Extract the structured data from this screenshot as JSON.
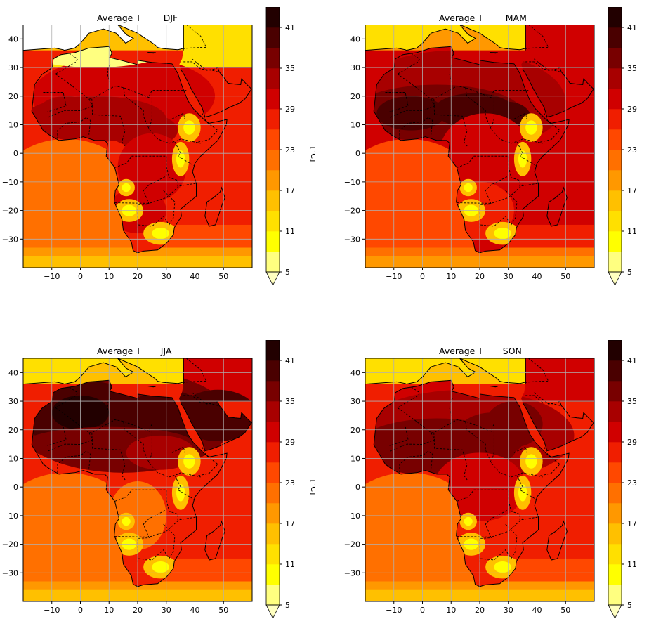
{
  "figure": {
    "panels": [
      {
        "title": "Average T        DJF",
        "season": "DJF"
      },
      {
        "title": "Average T        MAM",
        "season": "MAM"
      },
      {
        "title": "Average T       JJA",
        "season": "JJA"
      },
      {
        "title": "Average T       SON",
        "season": "SON"
      }
    ],
    "x_ticks": [
      "−10",
      "0",
      "10",
      "20",
      "30",
      "40",
      "50"
    ],
    "y_ticks": [
      "40",
      "30",
      "20",
      "10",
      "0",
      "−10",
      "−20",
      "−30"
    ],
    "colorbar": {
      "label": "[°C]",
      "ticks": [
        "5",
        "11",
        "17",
        "23",
        "29",
        "35",
        "41"
      ],
      "levels": [
        5,
        8,
        11,
        14,
        17,
        20,
        23,
        26,
        29,
        32,
        35,
        38,
        41
      ],
      "colors": [
        "#ffffc0",
        "#ffff80",
        "#ffff00",
        "#ffe000",
        "#ffc000",
        "#ff9800",
        "#ff7000",
        "#ff4800",
        "#f01e00",
        "#d00000",
        "#a80000",
        "#780000",
        "#4a0000",
        "#220000"
      ],
      "extend": "min"
    },
    "extent": {
      "lon": [
        -20,
        60
      ],
      "lat": [
        -40,
        45
      ]
    }
  }
}
